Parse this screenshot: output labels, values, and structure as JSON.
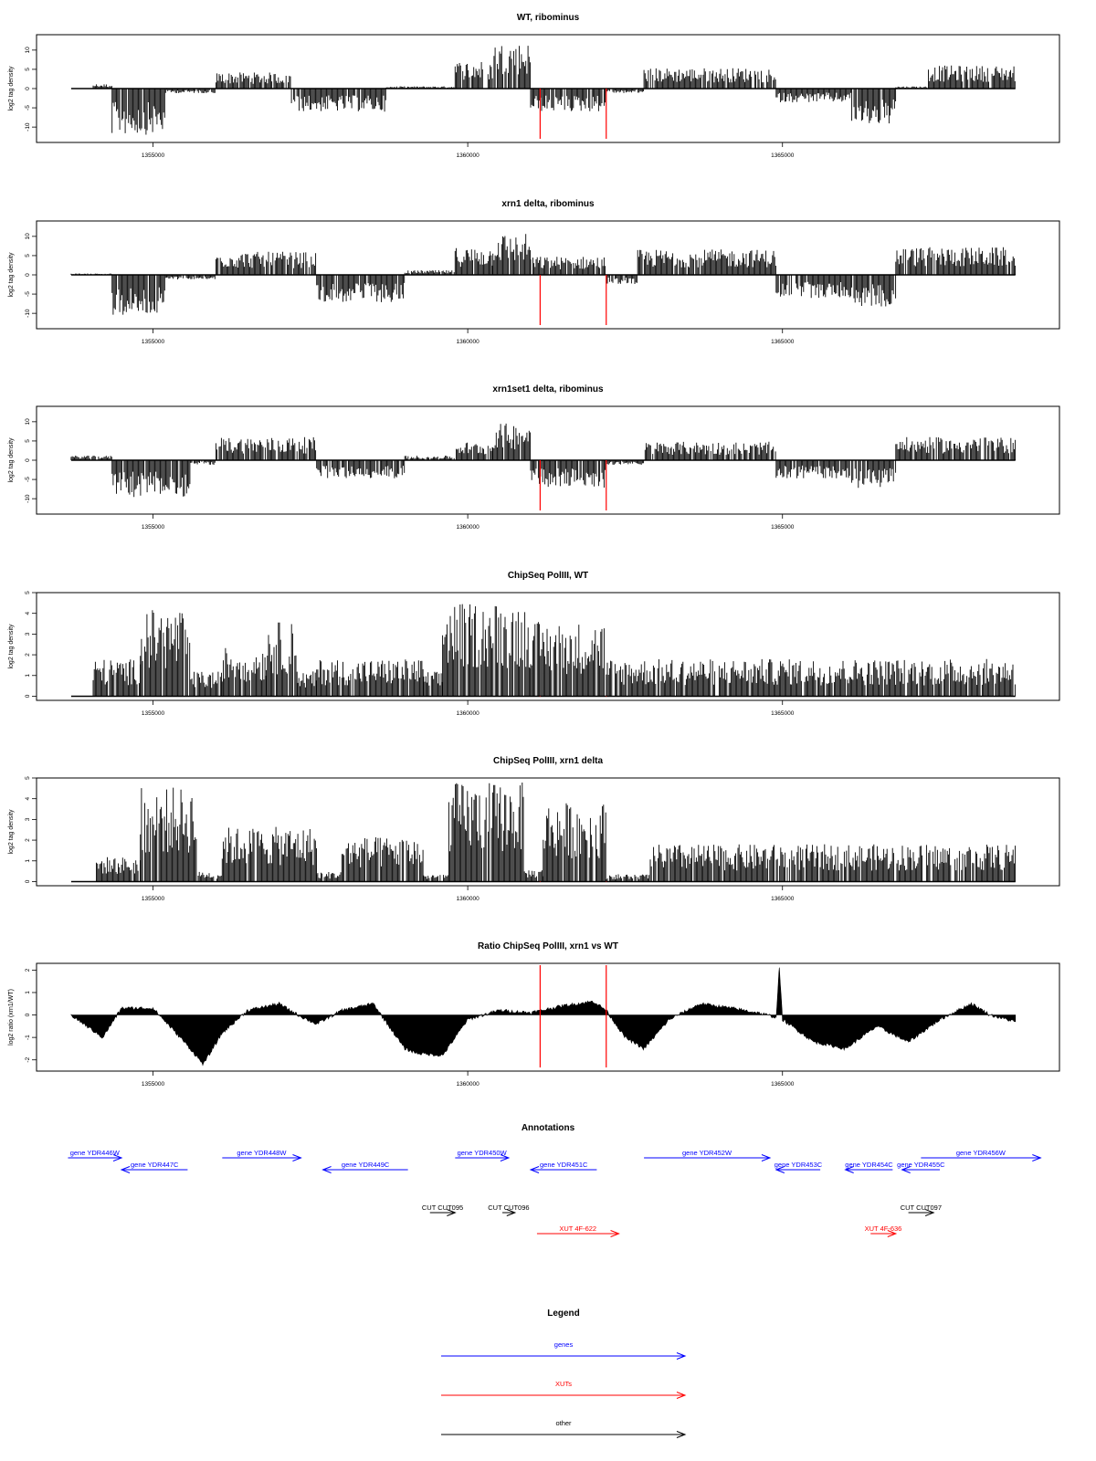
{
  "colors": {
    "gene": "#0000ff",
    "xut": "#ff0000",
    "other": "#000000",
    "marker": "#ff0000",
    "bars": "#000000"
  },
  "x_axis": {
    "range": [
      1353700,
      1368700
    ],
    "ticks": [
      1355000,
      1360000,
      1365000
    ],
    "tick_labels": [
      "1355000",
      "1360000",
      "1365000"
    ]
  },
  "markers": [
    1361150,
    1362200
  ],
  "chart_data": [
    {
      "id": "wt",
      "type": "bar",
      "title": "WT, ribominus",
      "ylabel": "log2 tag density",
      "ylim": [
        -14,
        14
      ],
      "yticks": [
        -10,
        -5,
        0,
        5,
        10
      ],
      "series": [
        {
          "start": 1353700,
          "end": 1354050,
          "value": 0
        },
        {
          "start": 1354050,
          "end": 1354350,
          "value": 1
        },
        {
          "start": 1354350,
          "end": 1355200,
          "value": -10
        },
        {
          "start": 1355200,
          "end": 1356000,
          "value": -1
        },
        {
          "start": 1356000,
          "end": 1357200,
          "value": 3.5
        },
        {
          "start": 1357200,
          "end": 1358700,
          "value": -5
        },
        {
          "start": 1358700,
          "end": 1359800,
          "value": 0.5
        },
        {
          "start": 1359800,
          "end": 1360400,
          "value": 6
        },
        {
          "start": 1360400,
          "end": 1361000,
          "value": 10
        },
        {
          "start": 1361000,
          "end": 1362200,
          "value": -5
        },
        {
          "start": 1362200,
          "end": 1362800,
          "value": -1
        },
        {
          "start": 1362800,
          "end": 1364900,
          "value": 4.5
        },
        {
          "start": 1364900,
          "end": 1366100,
          "value": -3
        },
        {
          "start": 1366100,
          "end": 1366800,
          "value": -8
        },
        {
          "start": 1366800,
          "end": 1367300,
          "value": 0.5
        },
        {
          "start": 1367300,
          "end": 1368700,
          "value": 5
        }
      ]
    },
    {
      "id": "xrn1",
      "type": "bar",
      "title": "xrn1 delta, ribominus",
      "ylabel": "log2 tag density",
      "ylim": [
        -14,
        14
      ],
      "yticks": [
        -10,
        -5,
        0,
        5,
        10
      ],
      "series": [
        {
          "start": 1353700,
          "end": 1354350,
          "value": 0.3
        },
        {
          "start": 1354350,
          "end": 1355200,
          "value": -9
        },
        {
          "start": 1355200,
          "end": 1356000,
          "value": -1
        },
        {
          "start": 1356000,
          "end": 1357600,
          "value": 5
        },
        {
          "start": 1357600,
          "end": 1359000,
          "value": -6
        },
        {
          "start": 1359000,
          "end": 1359800,
          "value": 1
        },
        {
          "start": 1359800,
          "end": 1360400,
          "value": 6
        },
        {
          "start": 1360400,
          "end": 1361000,
          "value": 9
        },
        {
          "start": 1361000,
          "end": 1362200,
          "value": 4
        },
        {
          "start": 1362200,
          "end": 1362700,
          "value": -2
        },
        {
          "start": 1362700,
          "end": 1364900,
          "value": 5.5
        },
        {
          "start": 1364900,
          "end": 1366100,
          "value": -5
        },
        {
          "start": 1366100,
          "end": 1366800,
          "value": -7
        },
        {
          "start": 1366800,
          "end": 1368700,
          "value": 6
        }
      ]
    },
    {
      "id": "xrn1set1",
      "type": "bar",
      "title": "xrn1set1 delta, ribominus",
      "ylabel": "log2 tag density",
      "ylim": [
        -14,
        14
      ],
      "yticks": [
        -10,
        -5,
        0,
        5,
        10
      ],
      "series": [
        {
          "start": 1353700,
          "end": 1354350,
          "value": 1
        },
        {
          "start": 1354350,
          "end": 1355600,
          "value": -8
        },
        {
          "start": 1355600,
          "end": 1356000,
          "value": -1
        },
        {
          "start": 1356000,
          "end": 1357600,
          "value": 5
        },
        {
          "start": 1357600,
          "end": 1359000,
          "value": -4
        },
        {
          "start": 1359000,
          "end": 1359800,
          "value": 1
        },
        {
          "start": 1359800,
          "end": 1360400,
          "value": 4
        },
        {
          "start": 1360400,
          "end": 1361000,
          "value": 8
        },
        {
          "start": 1361000,
          "end": 1362200,
          "value": -6
        },
        {
          "start": 1362200,
          "end": 1362800,
          "value": -1
        },
        {
          "start": 1362800,
          "end": 1364900,
          "value": 4
        },
        {
          "start": 1364900,
          "end": 1366100,
          "value": -4
        },
        {
          "start": 1366100,
          "end": 1366800,
          "value": -6
        },
        {
          "start": 1366800,
          "end": 1368700,
          "value": 5
        }
      ]
    },
    {
      "id": "chip_wt",
      "type": "bar",
      "title": "ChipSeq PolIII, WT",
      "ylabel": "log2 tag density",
      "ylim": [
        -0.2,
        5
      ],
      "yticks": [
        0,
        1,
        2,
        3,
        4,
        5
      ],
      "series": [
        {
          "start": 1353700,
          "end": 1354050,
          "value": 0
        },
        {
          "start": 1354050,
          "end": 1354800,
          "value": 1.5
        },
        {
          "start": 1354800,
          "end": 1355600,
          "value": 3.5
        },
        {
          "start": 1355600,
          "end": 1356100,
          "value": 1
        },
        {
          "start": 1356100,
          "end": 1356800,
          "value": 2
        },
        {
          "start": 1356800,
          "end": 1357300,
          "value": 3
        },
        {
          "start": 1357300,
          "end": 1357600,
          "value": 1
        },
        {
          "start": 1357600,
          "end": 1359300,
          "value": 1.5
        },
        {
          "start": 1359300,
          "end": 1359600,
          "value": 1
        },
        {
          "start": 1359600,
          "end": 1361000,
          "value": 3.8
        },
        {
          "start": 1361000,
          "end": 1362200,
          "value": 3
        },
        {
          "start": 1362200,
          "end": 1368700,
          "value": 1.5
        }
      ]
    },
    {
      "id": "chip_xrn1",
      "type": "bar",
      "title": "ChipSeq PolIII, xrn1 delta",
      "ylabel": "log2 tag density",
      "ylim": [
        -0.2,
        5
      ],
      "yticks": [
        0,
        1,
        2,
        3,
        4,
        5
      ],
      "series": [
        {
          "start": 1353700,
          "end": 1354100,
          "value": 0
        },
        {
          "start": 1354100,
          "end": 1354800,
          "value": 1
        },
        {
          "start": 1354800,
          "end": 1355700,
          "value": 3.8
        },
        {
          "start": 1355700,
          "end": 1356100,
          "value": 0.4
        },
        {
          "start": 1356100,
          "end": 1357600,
          "value": 2.2
        },
        {
          "start": 1357600,
          "end": 1358000,
          "value": 0.4
        },
        {
          "start": 1358000,
          "end": 1359300,
          "value": 1.8
        },
        {
          "start": 1359300,
          "end": 1359700,
          "value": 0.3
        },
        {
          "start": 1359700,
          "end": 1360900,
          "value": 4
        },
        {
          "start": 1360900,
          "end": 1361200,
          "value": 0.5
        },
        {
          "start": 1361200,
          "end": 1362200,
          "value": 3.2
        },
        {
          "start": 1362200,
          "end": 1362900,
          "value": 0.3
        },
        {
          "start": 1362900,
          "end": 1368700,
          "value": 1.5
        }
      ]
    },
    {
      "id": "ratio",
      "type": "area",
      "title": "Ratio ChipSeq PolIII, xrn1 vs WT",
      "ylabel": "log2 ratio (xrn1/WT)",
      "ylim": [
        -2.5,
        2.3
      ],
      "yticks": [
        -2,
        -1,
        0,
        1,
        2
      ],
      "x": [
        1353700,
        1354200,
        1354500,
        1355000,
        1355500,
        1355800,
        1356100,
        1356500,
        1357000,
        1357300,
        1357600,
        1358000,
        1358500,
        1359000,
        1359200,
        1359600,
        1360000,
        1360500,
        1361000,
        1361500,
        1362000,
        1362200,
        1362500,
        1362800,
        1363200,
        1363700,
        1364200,
        1364600,
        1364900,
        1364950,
        1365000,
        1365500,
        1366000,
        1366500,
        1367000,
        1367500,
        1368000,
        1368300,
        1368700
      ],
      "values": [
        0,
        -1,
        0.3,
        0.3,
        -1.2,
        -2.2,
        -0.8,
        0.2,
        0.5,
        0,
        -0.4,
        0.2,
        0.5,
        -1.5,
        -1.7,
        -1.8,
        -0.2,
        0.2,
        0.1,
        0.4,
        0.6,
        0.2,
        -1,
        -1.5,
        -0.2,
        0.5,
        0.3,
        0.1,
        -0.1,
        2.1,
        -0.2,
        -1.2,
        -1.5,
        -0.5,
        -1.2,
        -0.2,
        0.5,
        0,
        -0.3
      ]
    }
  ],
  "annotations": {
    "title": "Annotations",
    "genes": [
      {
        "label": "gene YDR446W",
        "start": 1353650,
        "end": 1354500,
        "strand": "+",
        "row": 0
      },
      {
        "label": "gene YDR447C",
        "start": 1354500,
        "end": 1355550,
        "strand": "-",
        "row": 1
      },
      {
        "label": "gene YDR448W",
        "start": 1356100,
        "end": 1357350,
        "strand": "+",
        "row": 0
      },
      {
        "label": "gene YDR449C",
        "start": 1357700,
        "end": 1359050,
        "strand": "-",
        "row": 1
      },
      {
        "label": "gene YDR450W",
        "start": 1359800,
        "end": 1360650,
        "strand": "+",
        "row": 0
      },
      {
        "label": "gene YDR451C",
        "start": 1361000,
        "end": 1362050,
        "strand": "-",
        "row": 1
      },
      {
        "label": "gene YDR452W",
        "start": 1362800,
        "end": 1364800,
        "strand": "+",
        "row": 0
      },
      {
        "label": "gene YDR453C",
        "start": 1364900,
        "end": 1365600,
        "strand": "-",
        "row": 1
      },
      {
        "label": "gene YDR454C",
        "start": 1366000,
        "end": 1366750,
        "strand": "-",
        "row": 1
      },
      {
        "label": "gene YDR455C",
        "start": 1366900,
        "end": 1367500,
        "strand": "-",
        "row": 1
      },
      {
        "label": "gene YDR456W",
        "start": 1367200,
        "end": 1369100,
        "strand": "+",
        "row": 0
      }
    ],
    "cuts": [
      {
        "label": "CUT CUT095",
        "start": 1359400,
        "end": 1359800,
        "strand": "+"
      },
      {
        "label": "CUT CUT096",
        "start": 1360550,
        "end": 1360750,
        "strand": "+"
      },
      {
        "label": "CUT CUT097",
        "start": 1367000,
        "end": 1367400,
        "strand": "+"
      }
    ],
    "xuts": [
      {
        "label": "XUT 4F-622",
        "start": 1361100,
        "end": 1362400,
        "strand": "+"
      },
      {
        "label": "XUT 4F-636",
        "start": 1366400,
        "end": 1366800,
        "strand": "+"
      }
    ]
  },
  "legend": {
    "title": "Legend",
    "items": [
      {
        "label": "genes",
        "color": "#0000ff"
      },
      {
        "label": "XUTs",
        "color": "#ff0000"
      },
      {
        "label": "other",
        "color": "#000000"
      }
    ]
  }
}
